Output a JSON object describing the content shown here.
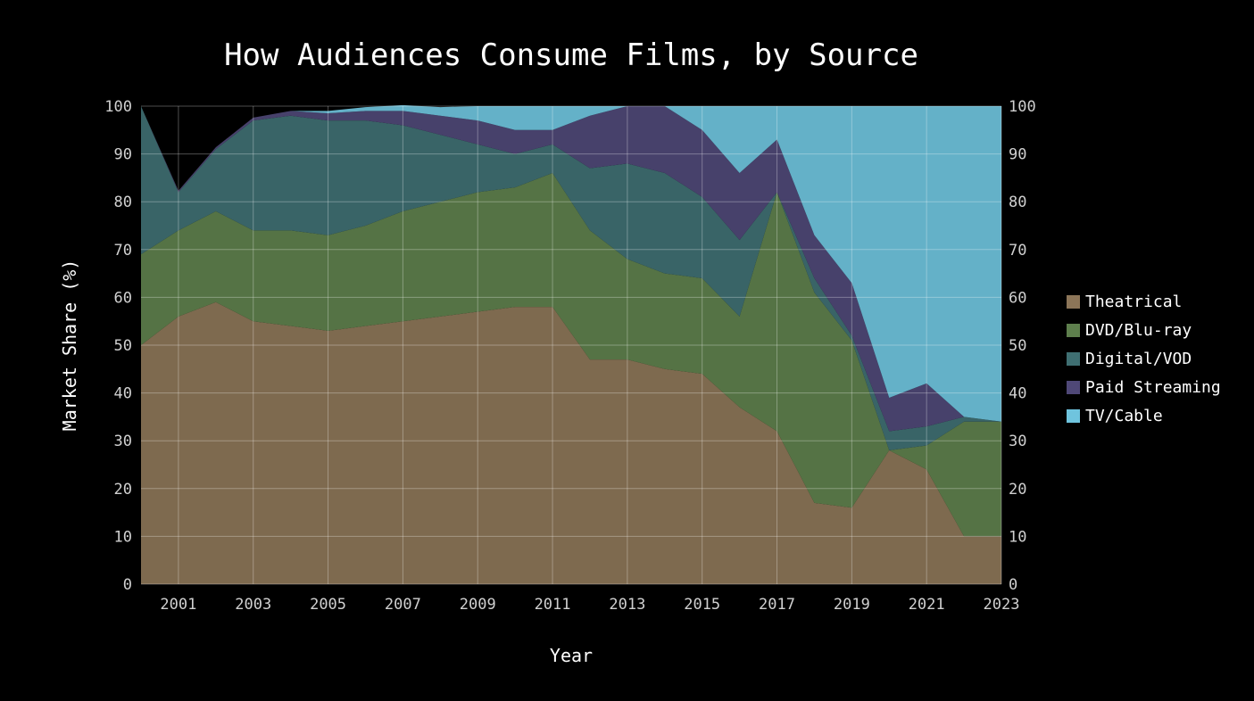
{
  "chart_data": {
    "type": "area",
    "title": "How Audiences Consume Films, by Source",
    "xlabel": "Year",
    "ylabel": "Market Share (%)",
    "xlim": [
      2000,
      2023
    ],
    "ylim": [
      0,
      100
    ],
    "x_ticks": [
      "2001",
      "2003",
      "2005",
      "2007",
      "2009",
      "2011",
      "2013",
      "2015",
      "2017",
      "2019",
      "2021",
      "2023"
    ],
    "y_ticks": [
      "0",
      "10",
      "20",
      "30",
      "40",
      "50",
      "60",
      "70",
      "80",
      "90",
      "100"
    ],
    "grid": true,
    "legend_position": "right",
    "x": [
      2000,
      2001,
      2002,
      2003,
      2004,
      2005,
      2006,
      2007,
      2008,
      2009,
      2010,
      2011,
      2012,
      2013,
      2014,
      2015,
      2016,
      2017,
      2018,
      2019,
      2020,
      2021,
      2022,
      2023
    ],
    "series": [
      {
        "name": "Theatrical",
        "color": "#8c7558",
        "values": [
          50,
          56,
          59,
          55,
          54,
          53,
          54,
          55,
          56,
          57,
          58,
          58,
          47,
          47,
          45,
          44,
          37,
          32,
          17,
          16,
          28,
          24,
          10,
          10
        ]
      },
      {
        "name": "DVD/Blu-ray",
        "color": "#5e7f4d",
        "values": [
          19,
          18,
          19,
          19,
          20,
          20,
          21,
          23,
          24,
          25,
          25,
          28,
          27,
          21,
          20,
          20,
          19,
          50,
          44,
          35,
          0,
          5,
          24,
          24
        ]
      },
      {
        "name": "Digital/VOD",
        "color": "#3f6f72",
        "values": [
          31,
          8,
          13,
          23,
          24,
          24,
          22,
          18,
          14,
          10,
          7,
          6,
          13,
          20,
          21,
          17,
          16,
          0,
          3,
          1,
          4,
          4,
          1,
          0
        ]
      },
      {
        "name": "Paid Streaming",
        "color": "#4f4877",
        "values": [
          0,
          0.3,
          0.4,
          0.6,
          1,
          1.5,
          2,
          3,
          4,
          5,
          5,
          3,
          11,
          12,
          14,
          14,
          14,
          11,
          9,
          11,
          7,
          9,
          0,
          0
        ]
      },
      {
        "name": "TV/Cable",
        "color": "#6fc4de",
        "values": [
          0,
          0,
          0,
          0,
          0,
          0.5,
          0.8,
          1.2,
          1.8,
          3,
          5,
          5,
          2,
          0,
          0,
          5,
          14,
          7,
          27,
          37,
          61,
          58,
          65,
          66
        ]
      }
    ]
  }
}
